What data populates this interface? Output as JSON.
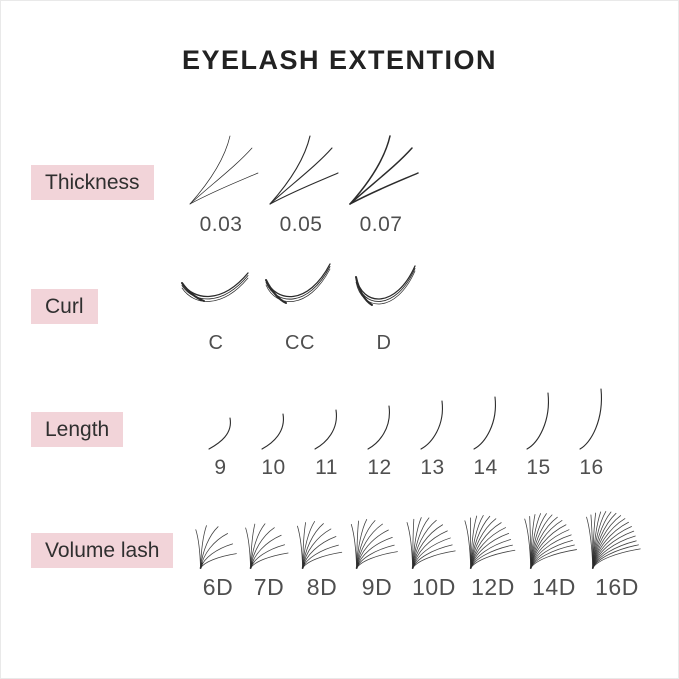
{
  "title": "EYELASH EXTENTION",
  "colors": {
    "background": "#ffffff",
    "label_bg": "#f2d4d9",
    "title_text": "#222222",
    "label_text": "#2f2f2f",
    "value_text": "#4f4f4f",
    "lash_stroke": "#2b2b2b"
  },
  "rows": {
    "thickness": {
      "label": "Thickness",
      "items": [
        {
          "value": "0.03",
          "stroke": 0.7
        },
        {
          "value": "0.05",
          "stroke": 1.1
        },
        {
          "value": "0.07",
          "stroke": 1.5
        }
      ]
    },
    "curl": {
      "label": "Curl",
      "items": [
        {
          "value": "C"
        },
        {
          "value": "CC"
        },
        {
          "value": "D"
        }
      ]
    },
    "length": {
      "label": "Length",
      "items": [
        {
          "value": "9"
        },
        {
          "value": "10"
        },
        {
          "value": "11"
        },
        {
          "value": "12"
        },
        {
          "value": "13"
        },
        {
          "value": "14"
        },
        {
          "value": "15"
        },
        {
          "value": "16"
        }
      ]
    },
    "volume": {
      "label": "Volume lash",
      "items": [
        {
          "value": "6D",
          "strands": 6
        },
        {
          "value": "7D",
          "strands": 7
        },
        {
          "value": "8D",
          "strands": 8
        },
        {
          "value": "9D",
          "strands": 9
        },
        {
          "value": "10D",
          "strands": 10
        },
        {
          "value": "12D",
          "strands": 12
        },
        {
          "value": "14D",
          "strands": 14
        },
        {
          "value": "16D",
          "strands": 16
        }
      ]
    }
  }
}
